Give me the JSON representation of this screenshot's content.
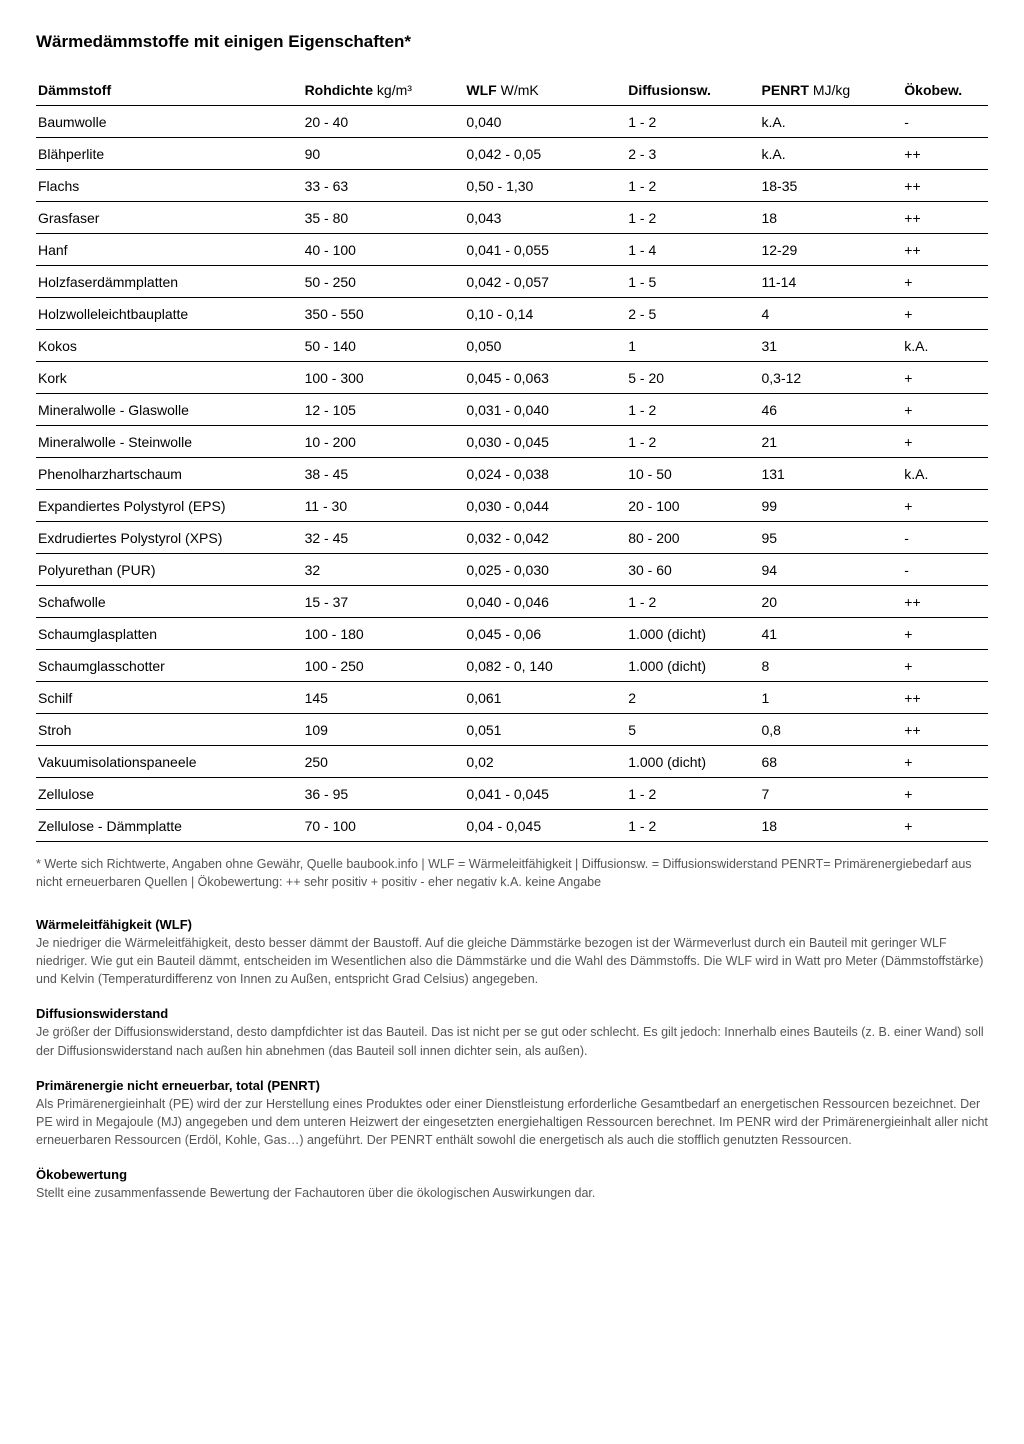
{
  "title": "Wärmedämmstoffe mit einigen Eigenschaften*",
  "columns": [
    {
      "bold": "Dämmstoff",
      "unit": ""
    },
    {
      "bold": "Rohdichte",
      "unit": " kg/m³"
    },
    {
      "bold": "WLF",
      "unit": " W/mK"
    },
    {
      "bold": "Diffusionsw.",
      "unit": ""
    },
    {
      "bold": "PENRT",
      "unit": " MJ/kg"
    },
    {
      "bold": "Ökobew.",
      "unit": ""
    }
  ],
  "rows": [
    [
      "Baumwolle",
      "20 - 40",
      "0,040",
      "1 - 2",
      "k.A.",
      "-"
    ],
    [
      "Blähperlite",
      "90",
      "0,042 - 0,05",
      "2 - 3",
      "k.A.",
      "++"
    ],
    [
      "Flachs",
      "33 - 63",
      "0,50 - 1,30",
      "1 - 2",
      "18-35",
      "++"
    ],
    [
      "Grasfaser",
      "35 - 80",
      "0,043",
      "1 - 2",
      "18",
      "++"
    ],
    [
      "Hanf",
      "40 - 100",
      "0,041 - 0,055",
      "1 - 4",
      "12-29",
      "++"
    ],
    [
      "Holzfaserdämmplatten",
      "50 - 250",
      "0,042 - 0,057",
      "1 - 5",
      "11-14",
      "+"
    ],
    [
      "Holzwolleleichtbauplatte",
      "350 - 550",
      "0,10 - 0,14",
      "2 - 5",
      "4",
      "+"
    ],
    [
      "Kokos",
      "50 - 140",
      "0,050",
      "1",
      "31",
      "k.A."
    ],
    [
      "Kork",
      "100 - 300",
      "0,045 - 0,063",
      "5 - 20",
      "0,3-12",
      "+"
    ],
    [
      "Mineralwolle - Glaswolle",
      "12 - 105",
      "0,031 - 0,040",
      "1 - 2",
      "46",
      "+"
    ],
    [
      "Mineralwolle - Steinwolle",
      "10 - 200",
      "0,030 - 0,045",
      "1 - 2",
      "21",
      "+"
    ],
    [
      "Phenolharzhartschaum",
      "38 - 45",
      "0,024 - 0,038",
      "10 - 50",
      "131",
      "k.A."
    ],
    [
      "Expandiertes Polystyrol (EPS)",
      "11 - 30",
      "0,030 - 0,044",
      "20 - 100",
      "99",
      "+"
    ],
    [
      "Exdrudiertes Polystyrol (XPS)",
      "32 - 45",
      "0,032 - 0,042",
      "80 - 200",
      "95",
      "-"
    ],
    [
      "Polyurethan (PUR)",
      "32",
      "0,025 - 0,030",
      "30 - 60",
      "94",
      "-"
    ],
    [
      "Schafwolle",
      "15 - 37",
      "0,040 - 0,046",
      "1 - 2",
      "20",
      "++"
    ],
    [
      "Schaumglasplatten",
      "100 - 180",
      "0,045 - 0,06",
      "1.000 (dicht)",
      "41",
      "+"
    ],
    [
      "Schaumglasschotter",
      "100 - 250",
      "0,082 - 0, 140",
      "1.000 (dicht)",
      "8",
      "+"
    ],
    [
      "Schilf",
      "145",
      "0,061",
      "2",
      "1",
      "++"
    ],
    [
      "Stroh",
      "109",
      "0,051",
      "5",
      "0,8",
      "++"
    ],
    [
      "Vakuumisolationspaneele",
      "250",
      "0,02",
      "1.000 (dicht)",
      "68",
      "+"
    ],
    [
      "Zellulose",
      "36 - 95",
      "0,041 - 0,045",
      "1 - 2",
      "7",
      "+"
    ],
    [
      "Zellulose - Dämmplatte",
      "70 - 100",
      "0,04 - 0,045",
      "1 - 2",
      "18",
      "+"
    ]
  ],
  "footnote": "* Werte sich Richtwerte, Angaben ohne Gewähr, Quelle baubook.info | WLF = Wärmeleitfähigkeit | Diffusionsw. = Diffusionswiderstand PENRT= Primärenergiebedarf aus nicht erneuerbaren Quellen | Ökobewertung: ++ sehr positiv + positiv - eher negativ  k.A. keine Angabe",
  "definitions": [
    {
      "title": "Wärmeleitfähigkeit (WLF)",
      "body": "Je niedriger die Wärmeleitfähigkeit, desto besser dämmt der Baustoff. Auf die gleiche Dämmstärke bezogen ist der Wärmeverlust durch ein Bauteil mit geringer WLF niedriger. Wie gut ein Bauteil dämmt, entscheiden im Wesentlichen also die Dämmstärke und die Wahl des Dämmstoffs. Die WLF wird in Watt pro Meter (Dämmstoffstärke) und Kelvin (Temperaturdifferenz von Innen zu Außen, entspricht Grad Celsius) angegeben."
    },
    {
      "title": "Diffusionswiderstand",
      "body": "Je größer der Diffusionswiderstand, desto dampfdichter ist das Bauteil. Das ist nicht per se gut oder schlecht. Es gilt jedoch: Innerhalb eines Bauteils (z. B. einer Wand) soll der Diffusionswiderstand nach außen hin abnehmen (das Bauteil soll innen dichter sein, als außen)."
    },
    {
      "title": "Primärenergie nicht erneuerbar, total (PENRT)",
      "body": "Als Primärenergieinhalt (PE) wird der zur Herstellung eines Produktes oder einer Dienstleistung erforderliche Gesamtbedarf an energetischen Ressourcen bezeichnet. Der PE wird in Megajoule (MJ) angegeben und dem unteren Heizwert der eingesetzten energiehaltigen Ressourcen berechnet. Im PENR wird der Primärenergieinhalt aller nicht erneuerbaren Ressourcen (Erdöl, Kohle, Gas…) angeführt. Der PENRT enthält sowohl die energetisch als auch die stofflich genutzten Ressourcen."
    },
    {
      "title": "Ökobewertung",
      "body": "Stellt eine zusammenfassende Bewertung der Fachautoren über die ökologischen Auswirkungen dar."
    }
  ]
}
